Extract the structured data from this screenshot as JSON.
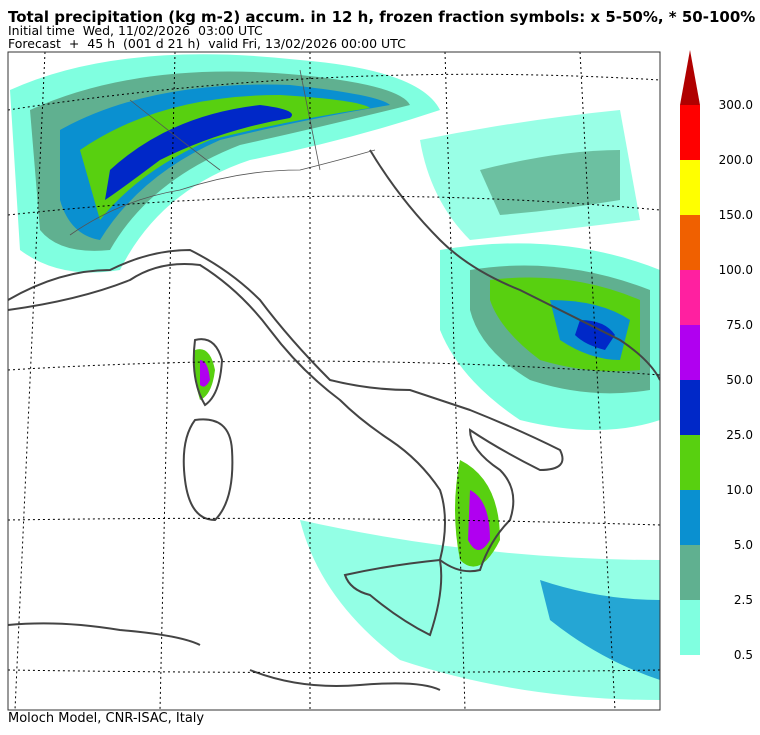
{
  "header": {
    "title": "Total precipitation (kg m-2) accum. in 12 h, frozen fraction symbols: x 5-50%, * 50-100%",
    "initial_time": "Initial time  Wed, 11/02/2026  03:00 UTC",
    "forecast": "Forecast  +  45 h  (001 d 21 h)  valid Fri, 13/02/2026 00:00 UTC"
  },
  "legend": {
    "labels": [
      "0.5",
      "2.5",
      "5.0",
      "10.0",
      "25.0",
      "50.0",
      "75.0",
      "100.0",
      "150.0",
      "200.0",
      "300.0"
    ],
    "colors": [
      "#80ffe0",
      "#60b090",
      "#0a90d0",
      "#58d010",
      "#0028c8",
      "#b000f0",
      "#ff20a0",
      "#f06000",
      "#ffff00",
      "#ff0000"
    ],
    "over_color": "#b00000"
  },
  "footer": "Moloch Model, CNR-ISAC, Italy"
}
